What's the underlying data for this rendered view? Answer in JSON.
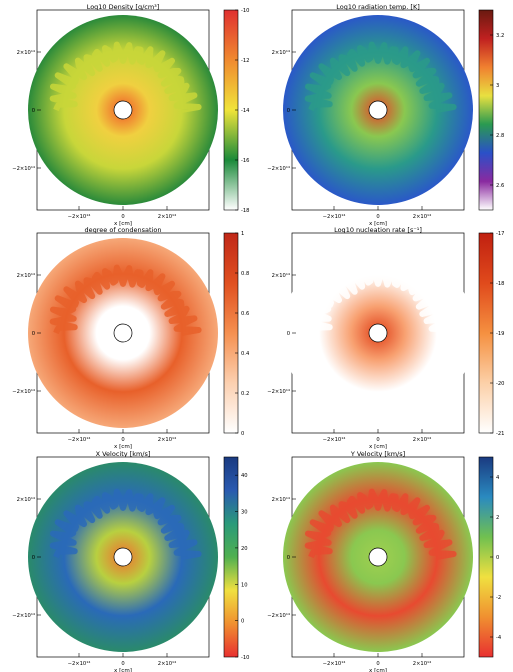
{
  "chart_data": [
    {
      "type": "heatmap",
      "title": "Log10 Density [g/cm³]",
      "xlabel": "x [cm]",
      "xticks": [
        "−2×10¹⁴",
        "0",
        "2×10¹⁴"
      ],
      "yticks": [
        "2×10¹⁴",
        "0",
        "−2×10¹⁴"
      ],
      "colorbar": {
        "ticks": [
          -10,
          -12,
          -14,
          -16,
          -18
        ],
        "range": [
          -18,
          -10
        ],
        "colors": [
          "#ffffff",
          "#1b8a3a",
          "#f0e43a",
          "#f08a30",
          "#e03030"
        ]
      },
      "map_colors": {
        "outer": "#2a8a3a",
        "shell": "#c8d63a",
        "inner": "#f0d040",
        "core": "#f05a28"
      }
    },
    {
      "type": "heatmap",
      "title": "Log10 radiation temp. [K]",
      "xlabel": "x [cm]",
      "xticks": [
        "−2×10¹⁴",
        "0",
        "2×10¹⁴"
      ],
      "yticks": [
        "2×10¹⁴",
        "0",
        "−2×10¹⁴"
      ],
      "colorbar": {
        "ticks": [
          3.2,
          3.0,
          2.8,
          2.6
        ],
        "range": [
          2.5,
          3.3
        ],
        "colors": [
          "#ffffff",
          "#8a2aa0",
          "#2a50c8",
          "#2a9a50",
          "#e8e040",
          "#f08030",
          "#c02020",
          "#6a1a10"
        ]
      },
      "map_colors": {
        "outer": "#2a58c8",
        "shell": "#2a9a8a",
        "inner": "#8ac850",
        "core": "#e84028"
      }
    },
    {
      "type": "heatmap",
      "title": "degree of condensation",
      "xlabel": "x [cm]",
      "xticks": [
        "−2×10¹⁴",
        "0",
        "2×10¹⁴"
      ],
      "yticks": [
        "2×10¹⁴",
        "0",
        "−2×10¹⁴"
      ],
      "colorbar": {
        "ticks": [
          1.0,
          0.8,
          0.6,
          0.4,
          0.2,
          0.0
        ],
        "range": [
          0,
          1
        ],
        "colors": [
          "#ffffff",
          "#fcd0b0",
          "#f59050",
          "#e05020",
          "#c02818"
        ]
      },
      "map_colors": {
        "outer": "#f6a878",
        "shell": "#e8602a",
        "inner": "#ffffff",
        "core": "#ffffff"
      }
    },
    {
      "type": "heatmap",
      "title": "Log10 nucleation rate [s⁻¹]",
      "xlabel": "x [cm]",
      "xticks": [
        "−2×10¹⁴",
        "0",
        "2×10¹⁴"
      ],
      "yticks": [
        "2×10¹⁴",
        "0",
        "−2×10¹⁴"
      ],
      "colorbar": {
        "ticks": [
          -17,
          -18,
          -19,
          -20,
          -21
        ],
        "range": [
          -21,
          -17
        ],
        "colors": [
          "#ffffff",
          "#fcd0a8",
          "#f59040",
          "#e04a1c",
          "#c02010"
        ]
      },
      "map_colors": {
        "outer": "#ffffff",
        "shell": "#ffffff",
        "inner": "#f8a070",
        "core": "#e04018"
      }
    },
    {
      "type": "heatmap",
      "title": "X Velocity [km/s]",
      "xlabel": "x [cm]",
      "xticks": [
        "−2×10¹⁴",
        "0",
        "2×10¹⁴"
      ],
      "yticks": [
        "2×10¹⁴",
        "0",
        "−2×10¹⁴"
      ],
      "colorbar": {
        "ticks": [
          40,
          30,
          20,
          10,
          0,
          -10
        ],
        "range": [
          -10,
          45
        ],
        "colors": [
          "#e83030",
          "#f09030",
          "#f0e040",
          "#50b050",
          "#2a9a7a",
          "#2a5ab0",
          "#1a3a80"
        ]
      },
      "map_colors": {
        "outer": "#2a8a6a",
        "shell": "#2a6ab8",
        "inner": "#b8d040",
        "core": "#f07030"
      }
    },
    {
      "type": "heatmap",
      "title": "Y Velocity [km/s]",
      "xlabel": "x [cm]",
      "xticks": [
        "−2×10¹⁴",
        "0",
        "2×10¹⁴"
      ],
      "yticks": [
        "2×10¹⁴",
        "0",
        "−2×10¹⁴"
      ],
      "colorbar": {
        "ticks": [
          4,
          2,
          0,
          -2,
          -4
        ],
        "range": [
          -5,
          5
        ],
        "colors": [
          "#e83030",
          "#f09030",
          "#f0e040",
          "#70c050",
          "#2a8ac0",
          "#1a3a80"
        ]
      },
      "map_colors": {
        "outer": "#8ac850",
        "shell": "#e84a30",
        "inner": "#8ac850",
        "core": "#a0d050"
      }
    }
  ]
}
